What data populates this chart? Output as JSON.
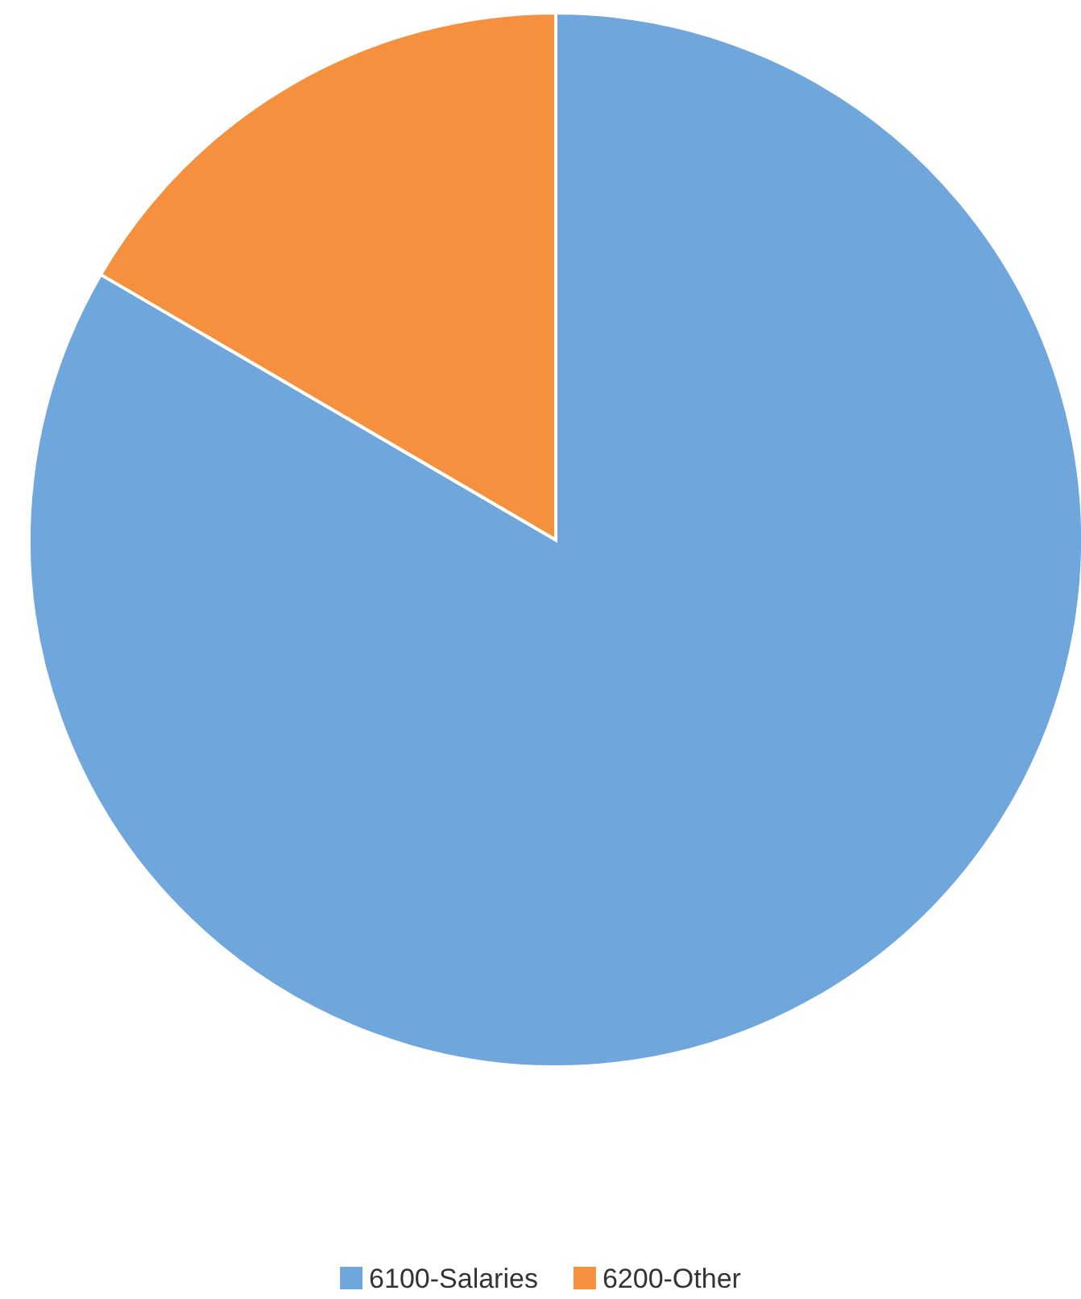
{
  "chart_data": {
    "type": "pie",
    "categories": [
      "6100-Salaries",
      "6200-Other"
    ],
    "values": [
      83.4,
      16.6
    ],
    "colors": [
      "#6fa6dc",
      "#f5913e"
    ],
    "legend": "bottom"
  }
}
